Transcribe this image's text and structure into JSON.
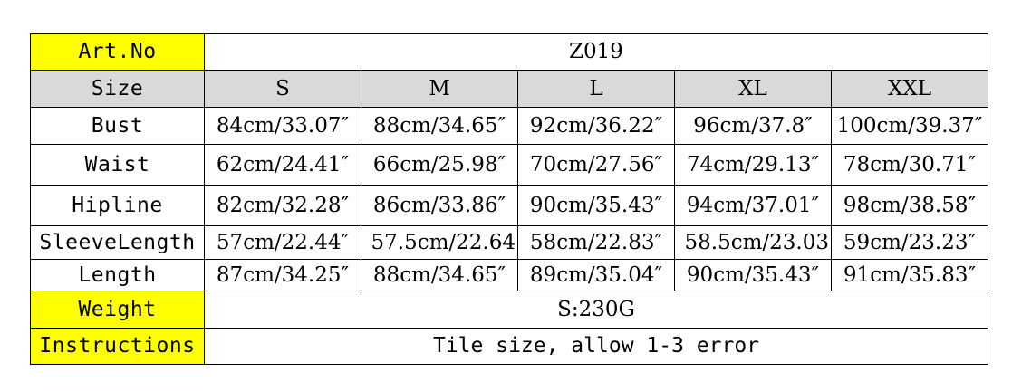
{
  "table": {
    "art_label": "Art.No",
    "art_value": "Z019",
    "size_label": "Size",
    "sizes": [
      "S",
      "M",
      "L",
      "XL",
      "XXL"
    ],
    "rows": [
      {
        "label": "Bust",
        "values": [
          "84cm/33.07″",
          "88cm/34.65″",
          "92cm/36.22″",
          "96cm/37.8″",
          "100cm/39.37″"
        ]
      },
      {
        "label": "Waist",
        "values": [
          "62cm/24.41″",
          "66cm/25.98″",
          "70cm/27.56″",
          "74cm/29.13″",
          "78cm/30.71″"
        ]
      },
      {
        "label": "Hipline",
        "values": [
          "82cm/32.28″",
          "86cm/33.86″",
          "90cm/35.43″",
          "94cm/37.01″",
          "98cm/38.58″"
        ]
      },
      {
        "label": "SleeveLength",
        "values": [
          "57cm/22.44″",
          "57.5cm/22.64",
          "58cm/22.83″",
          "58.5cm/23.03",
          "59cm/23.23″"
        ]
      },
      {
        "label": "Length",
        "values": [
          "87cm/34.25″",
          "88cm/34.65″",
          "89cm/35.04″",
          "90cm/35.43″",
          "91cm/35.83″"
        ]
      }
    ],
    "weight_label": "Weight",
    "weight_value": "S:230G",
    "instructions_label": "Instructions",
    "instructions_value": "Tile size, allow 1-3 error"
  },
  "colors": {
    "label_highlight": "#ffff00",
    "header_background": "#d9d9d9",
    "border": "#000000"
  }
}
